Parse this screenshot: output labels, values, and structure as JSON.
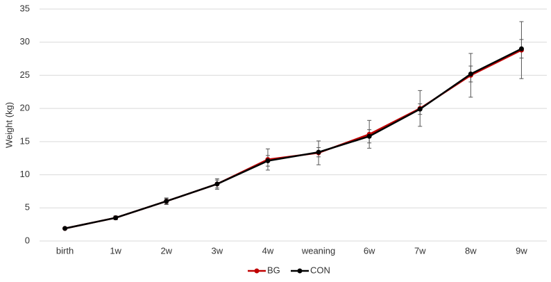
{
  "chart_data": {
    "type": "line",
    "y_label": "Weight (kg)",
    "categories": [
      "birth",
      "1w",
      "2w",
      "3w",
      "4w",
      "weaning",
      "6w",
      "7w",
      "8w",
      "9w"
    ],
    "series": [
      {
        "name": "BG",
        "color": "#c00000",
        "values": [
          1.9,
          3.5,
          6.0,
          8.6,
          12.3,
          13.3,
          16.1,
          20.0,
          25.0,
          28.8
        ],
        "errors": [
          0.1,
          0.3,
          0.5,
          0.8,
          1.6,
          1.8,
          2.1,
          2.7,
          3.3,
          4.3
        ]
      },
      {
        "name": "CON",
        "color": "#000000",
        "values": [
          1.9,
          3.5,
          6.0,
          8.6,
          12.1,
          13.4,
          15.8,
          19.9,
          25.2,
          29.0
        ],
        "errors": [
          0.1,
          0.2,
          0.4,
          0.6,
          0.8,
          0.7,
          1.0,
          0.8,
          1.2,
          1.4
        ]
      }
    ],
    "ylim": [
      0,
      35
    ],
    "yticks": [
      0,
      5,
      10,
      15,
      20,
      25,
      30,
      35
    ],
    "grid": true,
    "legend": "bottom"
  }
}
